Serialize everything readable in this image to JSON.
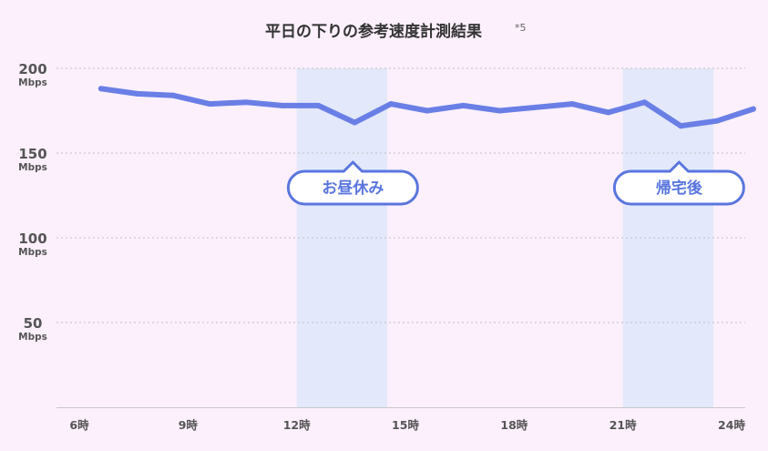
{
  "chart_data": {
    "type": "line",
    "title": "平日の下りの参考速度計測結果",
    "title_note": "*5",
    "y_ticks": [
      {
        "value": 200,
        "label": "200",
        "unit": "Mbps"
      },
      {
        "value": 150,
        "label": "150",
        "unit": "Mbps"
      },
      {
        "value": 100,
        "label": "100",
        "unit": "Mbps"
      },
      {
        "value": 50,
        "label": "50",
        "unit": "Mbps"
      }
    ],
    "ylim": [
      0,
      200
    ],
    "xlim": [
      6,
      24
    ],
    "x_ticks": [
      {
        "value": 6,
        "label": "6時"
      },
      {
        "value": 9,
        "label": "9時"
      },
      {
        "value": 12,
        "label": "12時"
      },
      {
        "value": 15,
        "label": "15時"
      },
      {
        "value": 18,
        "label": "18時"
      },
      {
        "value": 21,
        "label": "21時"
      },
      {
        "value": 24,
        "label": "24時"
      }
    ],
    "grid": true,
    "series": [
      {
        "x": [
          6.6,
          7.6,
          8.6,
          9.6,
          10.6,
          11.6,
          12.6,
          13.6,
          14.6,
          15.6,
          16.6,
          17.6,
          18.6,
          19.6,
          20.6,
          21.6,
          22.6,
          23.6,
          24.6
        ],
        "values": [
          188,
          185,
          184,
          179,
          180,
          178,
          178,
          168,
          179,
          175,
          178,
          175,
          177,
          179,
          174,
          180,
          166,
          169,
          176
        ]
      }
    ],
    "highlights": [
      {
        "x_start": 12.0,
        "x_end": 14.5,
        "label": "お昼休み"
      },
      {
        "x_start": 21.0,
        "x_end": 23.5,
        "label": "帰宅後"
      }
    ],
    "colors": {
      "background": "#fbf0fb",
      "line": "#6a7fe6",
      "band": "#e3e8fb",
      "callout_border": "#5a76de",
      "callout_fill": "#ffffff",
      "grid": "#bfbfbf"
    }
  }
}
